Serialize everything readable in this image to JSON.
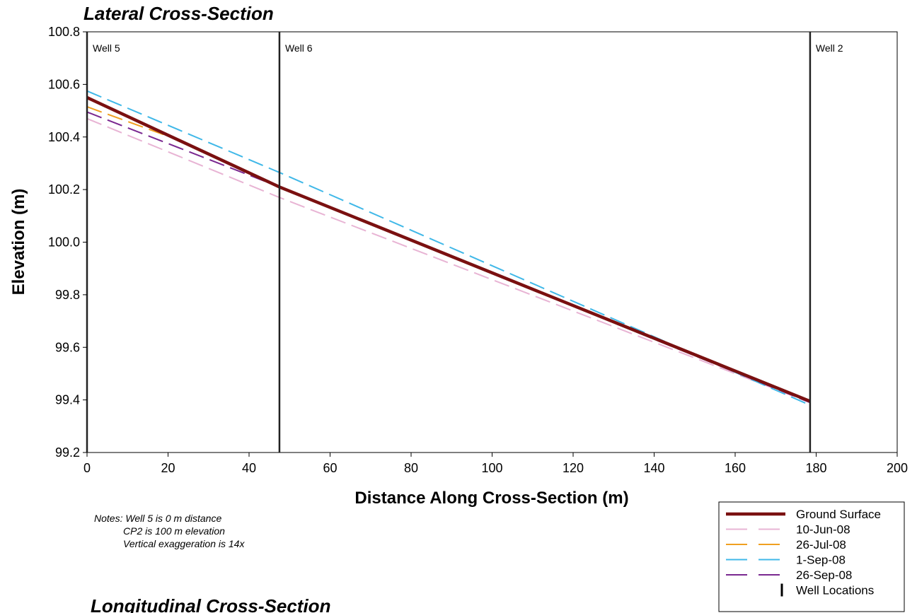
{
  "chart_data": {
    "type": "line",
    "title": "Lateral Cross-Section",
    "second_title": "Longitudinal Cross-Section",
    "xlabel": "Distance Along Cross-Section (m)",
    "ylabel": "Elevation (m)",
    "xlim": [
      0,
      200
    ],
    "ylim": [
      99.2,
      100.8
    ],
    "x_ticks": [
      0,
      20,
      40,
      60,
      80,
      100,
      120,
      140,
      160,
      180,
      200
    ],
    "y_ticks": [
      99.2,
      99.4,
      99.6,
      99.8,
      100.0,
      100.2,
      100.4,
      100.6,
      100.8
    ],
    "grid": false,
    "legend_position": "bottom-right",
    "wells": [
      {
        "name": "Well 5",
        "x": 0
      },
      {
        "name": "Well 6",
        "x": 47.5
      },
      {
        "name": "Well 2",
        "x": 178.5
      }
    ],
    "series": [
      {
        "name": "Ground Surface",
        "color": "#7a1010",
        "style": "solid",
        "x": [
          0,
          47.5,
          178.5
        ],
        "y": [
          100.55,
          100.21,
          99.395
        ]
      },
      {
        "name": "10-Jun-08",
        "color": "#e8b4d4",
        "style": "dashed",
        "x": [
          0,
          47.5,
          178.5
        ],
        "y": [
          100.47,
          100.17,
          99.39
        ]
      },
      {
        "name": "26-Jul-08",
        "color": "#f0a020",
        "style": "dashed",
        "x": [
          0,
          25
        ],
        "y": [
          100.515,
          100.375
        ]
      },
      {
        "name": "1-Sep-08",
        "color": "#40b8e8",
        "style": "dashed",
        "x": [
          0,
          47.5,
          178.5
        ],
        "y": [
          100.575,
          100.265,
          99.38
        ]
      },
      {
        "name": "26-Sep-08",
        "color": "#7a2890",
        "style": "dashed",
        "x": [
          0,
          47.5,
          178.5
        ],
        "y": [
          100.495,
          100.21,
          99.39
        ]
      }
    ],
    "well_legend_label": "Well Locations",
    "notes": [
      "Notes: Well 5 is 0 m distance",
      "CP2 is 100 m elevation",
      "Vertical exaggeration is 14x"
    ]
  }
}
